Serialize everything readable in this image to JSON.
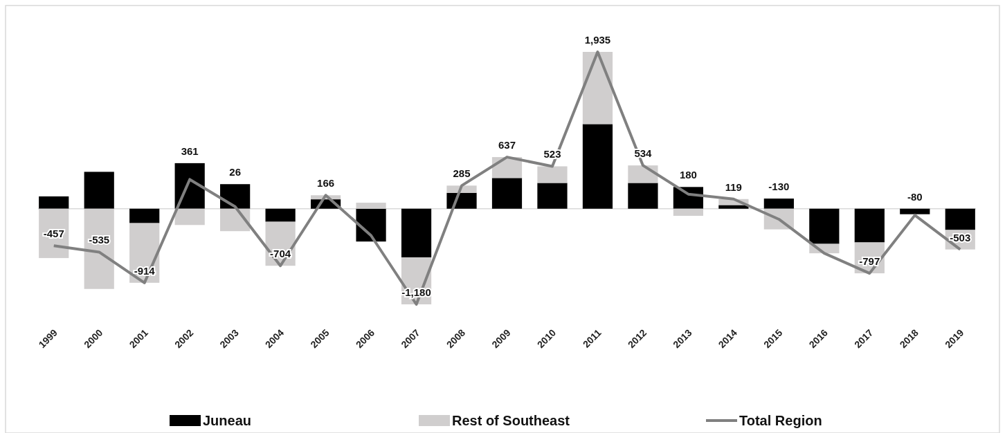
{
  "chart_data": {
    "type": "bar",
    "stacked": true,
    "categories": [
      "1999",
      "2000",
      "2001",
      "2002",
      "2003",
      "2004",
      "2005",
      "2006",
      "2007",
      "2008",
      "2009",
      "2010",
      "2011",
      "2012",
      "2013",
      "2014",
      "2015",
      "2016",
      "2017",
      "2018",
      "2019"
    ],
    "series": [
      {
        "name": "Juneau",
        "color": "#000000",
        "values": [
          152,
          455,
          -178,
          562,
          303,
          -161,
          116,
          -405,
          -602,
          196,
          379,
          318,
          1044,
          318,
          268,
          45,
          125,
          -434,
          -416,
          -68,
          -262
        ]
      },
      {
        "name": "Rest of Southeast",
        "color": "#d0cece",
        "values": [
          -609,
          -990,
          -736,
          -201,
          -277,
          -543,
          50,
          74,
          -578,
          89,
          258,
          205,
          891,
          216,
          -88,
          74,
          -255,
          -116,
          -381,
          null,
          -241
        ]
      },
      {
        "name": "Total Region",
        "type": "line",
        "color": "#808080",
        "values": [
          -457,
          -535,
          -914,
          361,
          26,
          -704,
          166,
          -331,
          -1180,
          285,
          637,
          523,
          1935,
          534,
          180,
          119,
          -130,
          -550,
          -797,
          -80,
          -503
        ],
        "value_labels": [
          "-457",
          "-535",
          "-914",
          "361",
          "26",
          "-704",
          "166",
          null,
          "-1,180",
          "285",
          "637",
          "523",
          "1,935",
          "534",
          "180",
          "119",
          "-130",
          null,
          "-797",
          "-80",
          "-503"
        ]
      }
    ],
    "legend": "bottom",
    "marker": "none",
    "line_style": "solid"
  }
}
